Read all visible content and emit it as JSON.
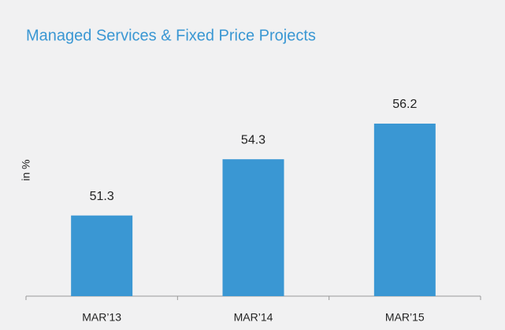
{
  "chart_data": {
    "type": "bar",
    "title": "Managed Services & Fixed Price Projects",
    "y_label": "in %",
    "categories": [
      "MAR’13",
      "MAR’14",
      "MAR’15"
    ],
    "values": [
      51.3,
      54.3,
      56.2
    ],
    "color": "#3a97d3",
    "ylim": [
      47,
      57.5
    ]
  }
}
